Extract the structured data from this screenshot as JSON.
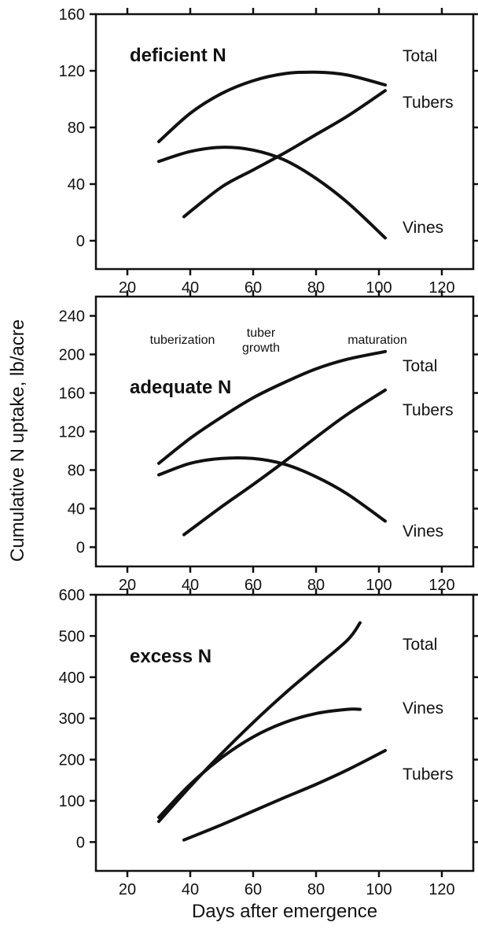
{
  "figure": {
    "ylabel": "Cumulative N uptake, lb/acre",
    "xlabel": "Days after emergence"
  },
  "chart_data": [
    {
      "type": "line",
      "title": "deficient N",
      "xlim": [
        10,
        130
      ],
      "ylim": [
        -20,
        160
      ],
      "xticks": [
        20,
        40,
        60,
        80,
        100,
        120
      ],
      "yticks": [
        0,
        40,
        80,
        120,
        160
      ],
      "annotations": [],
      "series": [
        {
          "name": "Total",
          "x": [
            30,
            40,
            50,
            60,
            70,
            80,
            90,
            102
          ],
          "y": [
            70,
            90,
            104,
            113,
            118,
            119,
            117,
            110
          ]
        },
        {
          "name": "Tubers",
          "x": [
            38,
            50,
            60,
            70,
            80,
            90,
            102
          ],
          "y": [
            17,
            38,
            50,
            62,
            75,
            88,
            106
          ]
        },
        {
          "name": "Vines",
          "x": [
            30,
            40,
            50,
            60,
            70,
            80,
            90,
            102
          ],
          "y": [
            56,
            63,
            66,
            64,
            57,
            44,
            27,
            2
          ]
        }
      ]
    },
    {
      "type": "line",
      "title": "adequate N",
      "xlim": [
        10,
        130
      ],
      "ylim": [
        -20,
        260
      ],
      "xticks": [
        20,
        40,
        60,
        80,
        100,
        120
      ],
      "yticks": [
        0,
        40,
        80,
        120,
        160,
        200,
        240
      ],
      "annotations": [
        "tuberization",
        "tuber growth",
        "maturation"
      ],
      "series": [
        {
          "name": "Total",
          "x": [
            30,
            40,
            50,
            60,
            70,
            80,
            90,
            102
          ],
          "y": [
            87,
            113,
            135,
            155,
            171,
            185,
            195,
            203
          ]
        },
        {
          "name": "Tubers",
          "x": [
            38,
            50,
            60,
            70,
            80,
            90,
            102
          ],
          "y": [
            13,
            42,
            65,
            89,
            114,
            138,
            163
          ]
        },
        {
          "name": "Vines",
          "x": [
            30,
            40,
            50,
            60,
            70,
            80,
            90,
            102
          ],
          "y": [
            75,
            87,
            92,
            92,
            86,
            73,
            55,
            27
          ]
        }
      ]
    },
    {
      "type": "line",
      "title": "excess N",
      "xlim": [
        10,
        130
      ],
      "ylim": [
        -70,
        600
      ],
      "xticks": [
        20,
        40,
        60,
        80,
        100,
        120
      ],
      "yticks": [
        0,
        100,
        200,
        300,
        400,
        500,
        600
      ],
      "annotations": [],
      "series": [
        {
          "name": "Total",
          "x": [
            30,
            40,
            50,
            60,
            70,
            80,
            90,
            94
          ],
          "y": [
            50,
            135,
            215,
            290,
            360,
            425,
            490,
            532
          ]
        },
        {
          "name": "Vines",
          "x": [
            30,
            40,
            50,
            60,
            70,
            80,
            90,
            94
          ],
          "y": [
            60,
            140,
            205,
            255,
            290,
            312,
            322,
            322
          ]
        },
        {
          "name": "Tubers",
          "x": [
            38,
            50,
            60,
            70,
            80,
            90,
            102
          ],
          "y": [
            5,
            42,
            75,
            108,
            140,
            175,
            222
          ]
        }
      ]
    }
  ]
}
